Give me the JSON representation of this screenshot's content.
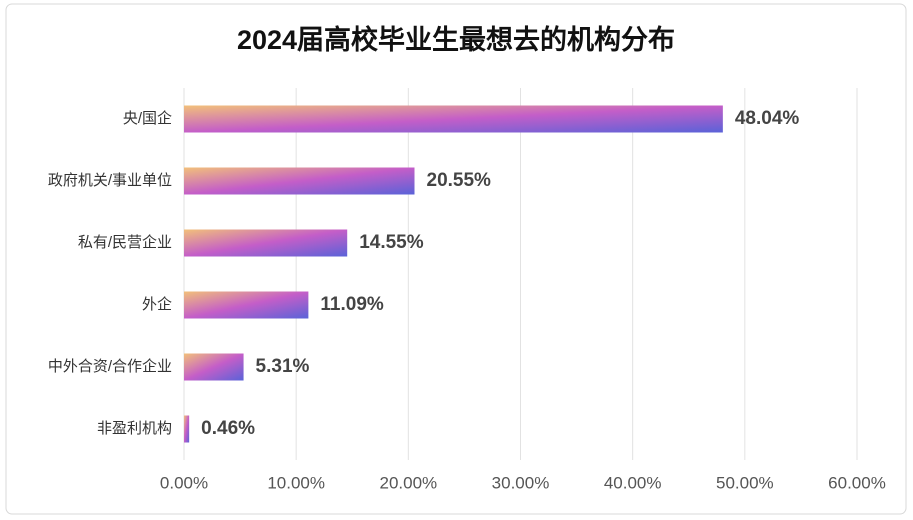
{
  "chart_data": {
    "type": "bar",
    "orientation": "horizontal",
    "title": "2024届高校毕业生最想去的机构分布",
    "categories": [
      "央/国企",
      "政府机关/事业单位",
      "私有/民营企业",
      "外企",
      "中外合资/合作企业",
      "非盈利机构"
    ],
    "values": [
      48.04,
      20.55,
      14.55,
      11.09,
      5.31,
      0.46
    ],
    "value_labels": [
      "48.04%",
      "20.55%",
      "14.55%",
      "11.09%",
      "5.31%",
      "0.46%"
    ],
    "colors": [
      "#f2c07a",
      "#c45ec8",
      "#5a62d8"
    ],
    "xlim": [
      0,
      60
    ],
    "xticks": [
      {
        "value": 0,
        "label": "0.00%"
      },
      {
        "value": 10,
        "label": "10.00%"
      },
      {
        "value": 20,
        "label": "20.00%"
      },
      {
        "value": 30,
        "label": "30.00%"
      },
      {
        "value": 40,
        "label": "40.00%"
      },
      {
        "value": 50,
        "label": "50.00%"
      },
      {
        "value": 60,
        "label": "60.00%"
      }
    ],
    "grid": true
  }
}
